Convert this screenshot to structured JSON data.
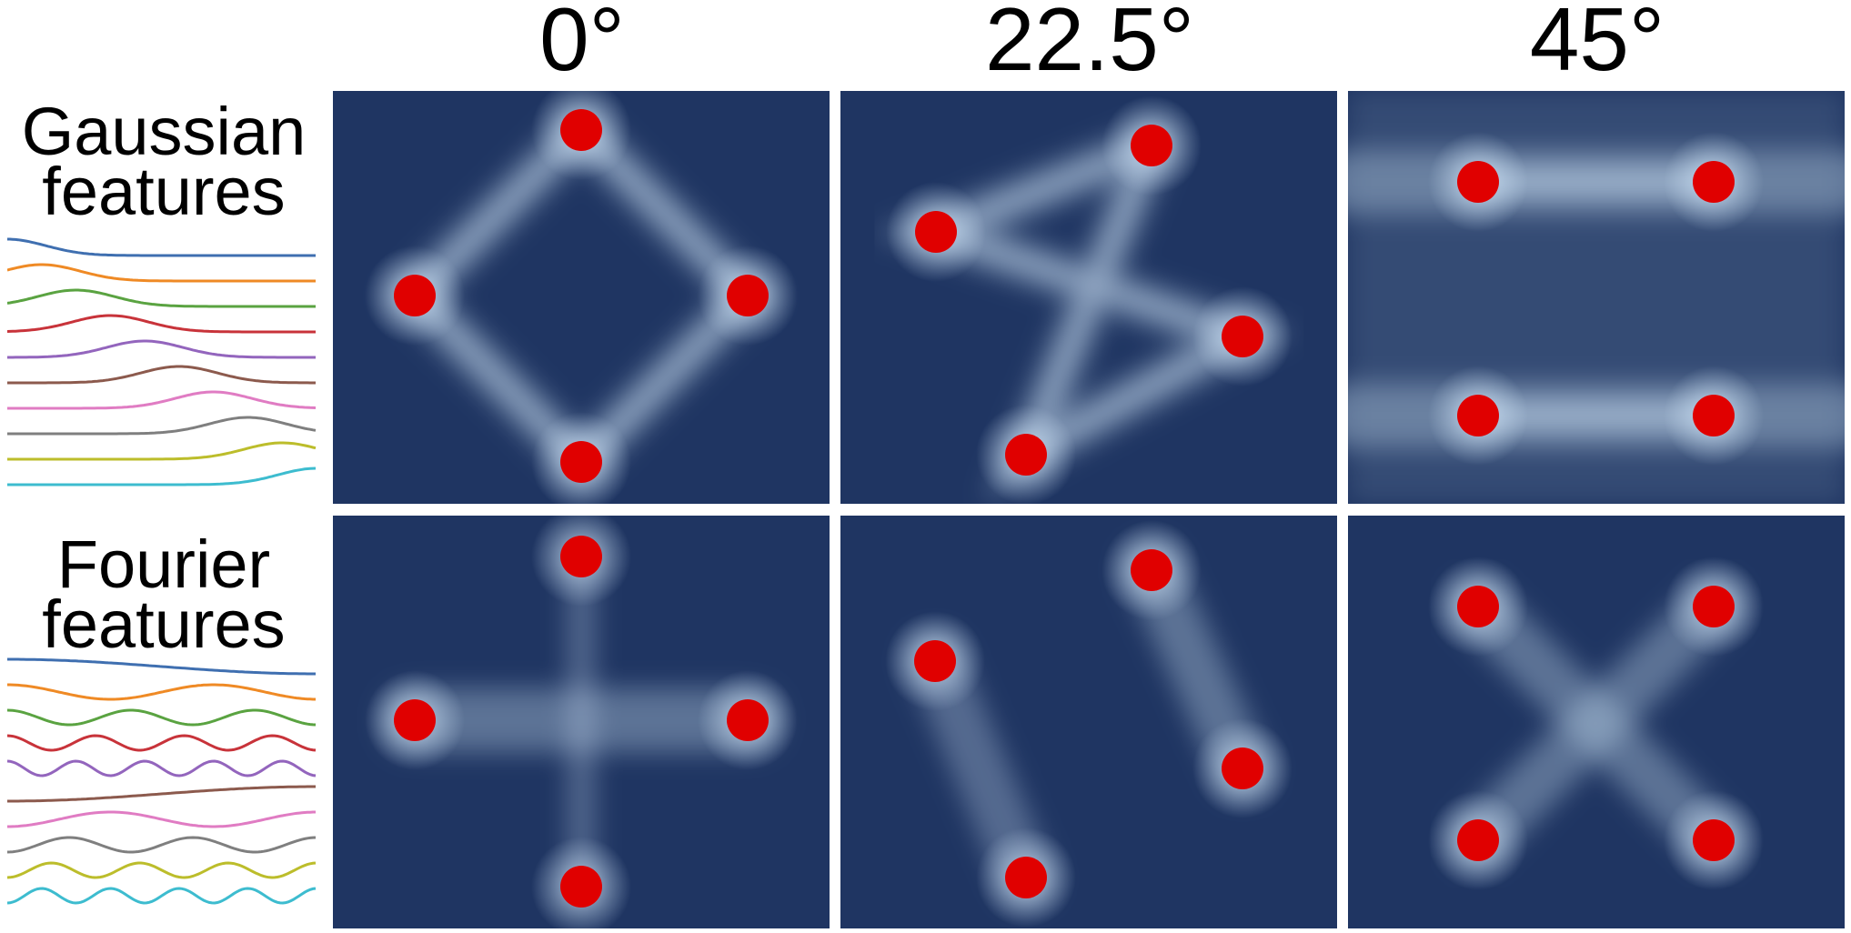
{
  "column_headers": [
    "0°",
    "22.5°",
    "45°"
  ],
  "rows": [
    {
      "title_line1": "Gaussian",
      "title_line2": "features",
      "feature_type": "gaussian",
      "panels": [
        {
          "angle": "0°",
          "marker_count": 4,
          "density_pattern": "diamond"
        },
        {
          "angle": "22.5°",
          "marker_count": 4,
          "density_pattern": "rotated-diamond"
        },
        {
          "angle": "45°",
          "marker_count": 4,
          "density_pattern": "horizontal-bands"
        }
      ]
    },
    {
      "title_line1": "Fourier",
      "title_line2": "features",
      "feature_type": "fourier",
      "panels": [
        {
          "angle": "0°",
          "marker_count": 4,
          "density_pattern": "cross"
        },
        {
          "angle": "22.5°",
          "marker_count": 4,
          "density_pattern": "rotated-cross"
        },
        {
          "angle": "45°",
          "marker_count": 4,
          "density_pattern": "x-shape"
        }
      ]
    }
  ],
  "feature_curve_colors": [
    "#3f6fb0",
    "#ef8a25",
    "#5aa341",
    "#c8333a",
    "#9365bd",
    "#8c5a4d",
    "#e07cc3",
    "#7f7f7f",
    "#bcbd2b",
    "#3dbccf"
  ],
  "colors": {
    "panel_background": "#1f3562",
    "density_highlight": "#cfe4f7",
    "marker": "#e00000"
  }
}
